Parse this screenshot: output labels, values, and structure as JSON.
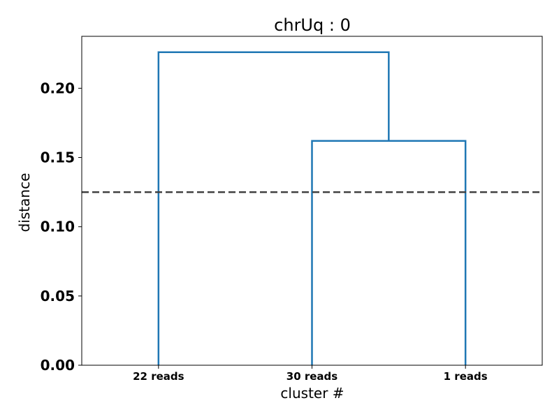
{
  "chart_data": {
    "type": "dendrogram",
    "title": "chrUq : 0",
    "xlabel": "cluster #",
    "ylabel": "distance",
    "ylim": [
      0,
      0.2375
    ],
    "yticks": [
      0.0,
      0.05,
      0.1,
      0.15,
      0.2
    ],
    "ytick_labels": [
      "0.00",
      "0.05",
      "0.10",
      "0.15",
      "0.20"
    ],
    "leaves": [
      "22 reads",
      "30 reads",
      "1 reads"
    ],
    "merges": [
      {
        "left": "30 reads",
        "right": "1 reads",
        "height": 0.162
      },
      {
        "left": "22 reads",
        "right": "cluster(30 reads, 1 reads)",
        "height": 0.226
      }
    ],
    "threshold": 0.125,
    "link_color": "#1f77b4",
    "threshold_color": "#404040",
    "grid": false
  }
}
